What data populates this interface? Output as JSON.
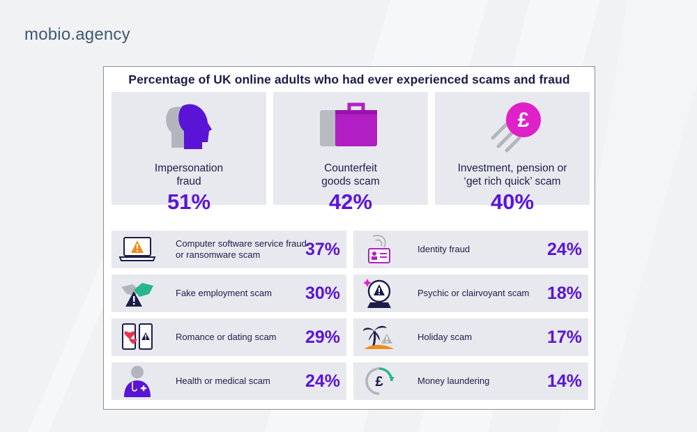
{
  "brand": "mobio.agency",
  "title": "Percentage of UK online adults who had ever experienced scams and fraud",
  "colors": {
    "accent": "#5a14d6",
    "text": "#1a1c4a",
    "tile": "#e8e9ee",
    "pink": "#e020c8",
    "orange": "#f08c1e"
  },
  "top_cards": [
    {
      "label": "Impersonation\nfraud",
      "percent": "51%",
      "icon": "profile-heads-icon"
    },
    {
      "label": "Counterfeit\ngoods scam",
      "percent": "42%",
      "icon": "suitcase-icon"
    },
    {
      "label": "Investment, pension or\n‘get rich quick’ scam",
      "percent": "40%",
      "icon": "pound-coin-icon"
    }
  ],
  "left_items": [
    {
      "label": "Computer software service fraud or ransomware scam",
      "percent": "37%",
      "icon": "laptop-warning-icon"
    },
    {
      "label": "Fake employment scam",
      "percent": "30%",
      "icon": "handshake-warning-icon"
    },
    {
      "label": "Romance or dating scam",
      "percent": "29%",
      "icon": "phones-hearts-icon"
    },
    {
      "label": "Health or medical scam",
      "percent": "24%",
      "icon": "doctor-icon"
    }
  ],
  "right_items": [
    {
      "label": "Identity fraud",
      "percent": "24%",
      "icon": "id-card-icon"
    },
    {
      "label": "Psychic or clairvoyant scam",
      "percent": "18%",
      "icon": "crystal-ball-icon"
    },
    {
      "label": "Holiday scam",
      "percent": "17%",
      "icon": "palm-island-icon"
    },
    {
      "label": "Money laundering",
      "percent": "14%",
      "icon": "pound-cycle-icon"
    }
  ]
}
